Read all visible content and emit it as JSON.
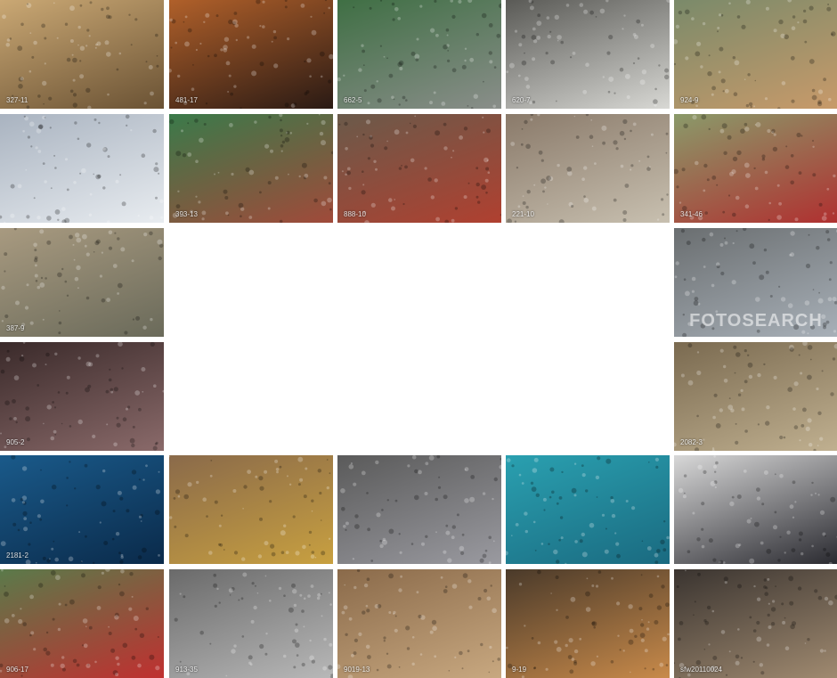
{
  "tiles": [
    {
      "row": 0,
      "col": 0,
      "caption": "327-11",
      "scene": "train station crowd",
      "colors": [
        "#caa874",
        "#6a5234"
      ]
    },
    {
      "row": 0,
      "col": 1,
      "caption": "481-17",
      "scene": "night city traffic",
      "colors": [
        "#b0602a",
        "#2a1a14"
      ]
    },
    {
      "row": 0,
      "col": 2,
      "caption": "662-5",
      "scene": "plaza fountain traffic",
      "colors": [
        "#3f6f44",
        "#8a8e8a"
      ]
    },
    {
      "row": 0,
      "col": 3,
      "caption": "620-7",
      "scene": "crosswalk intersection",
      "colors": [
        "#5a5a56",
        "#d8d8d4"
      ]
    },
    {
      "row": 0,
      "col": 4,
      "caption": "924-9",
      "scene": "highway interchange",
      "colors": [
        "#7a8a6a",
        "#c89a6a"
      ]
    },
    {
      "row": 1,
      "col": 0,
      "caption": "",
      "scene": "white-robed gathering",
      "colors": [
        "#a9b3c0",
        "#e8ecf0"
      ]
    },
    {
      "row": 1,
      "col": 1,
      "caption": "393-13",
      "scene": "stadium performance",
      "colors": [
        "#3a7a4a",
        "#a04a3a"
      ]
    },
    {
      "row": 1,
      "col": 2,
      "caption": "888-10",
      "scene": "crowd running",
      "colors": [
        "#6a5a4a",
        "#b04030"
      ]
    },
    {
      "row": 1,
      "col": 3,
      "caption": "221-10",
      "scene": "hall booths crowd",
      "colors": [
        "#8a7a6a",
        "#c8c0b0"
      ]
    },
    {
      "row": 1,
      "col": 4,
      "caption": "341-46",
      "scene": "street with buses",
      "colors": [
        "#8a9a6a",
        "#b03030"
      ]
    },
    {
      "row": 2,
      "col": 0,
      "caption": "387-9",
      "scene": "aerial intersection",
      "colors": [
        "#a89a80",
        "#6a6a5a"
      ]
    },
    {
      "row": 2,
      "col": 4,
      "caption": "",
      "watermark": "FOTOSEARCH",
      "scene": "highway",
      "colors": [
        "#6a6e70",
        "#a8b0b8"
      ]
    },
    {
      "row": 3,
      "col": 0,
      "caption": "905-2",
      "scene": "dense crowd",
      "colors": [
        "#3a2a2a",
        "#8a6a6a"
      ]
    },
    {
      "row": 3,
      "col": 4,
      "caption": "2082-3",
      "scene": "city street with bus",
      "colors": [
        "#7a6a50",
        "#c0b090"
      ]
    },
    {
      "row": 4,
      "col": 0,
      "caption": "2181-2",
      "scene": "fish school underwater",
      "colors": [
        "#1a5a8a",
        "#0a2a4a"
      ]
    },
    {
      "row": 4,
      "col": 1,
      "caption": "",
      "scene": "festival ship procession",
      "colors": [
        "#8a6a4a",
        "#c8a040"
      ]
    },
    {
      "row": 4,
      "col": 2,
      "caption": "",
      "scene": "city street parade",
      "colors": [
        "#5a5a5a",
        "#9a9aa0"
      ]
    },
    {
      "row": 4,
      "col": 3,
      "caption": "",
      "scene": "fish underwater",
      "colors": [
        "#2aa0b0",
        "#1a6a80"
      ]
    },
    {
      "row": 4,
      "col": 4,
      "caption": "",
      "scene": "business crowd walking",
      "colors": [
        "#d8d8d8",
        "#2a2a30"
      ]
    },
    {
      "row": 5,
      "col": 0,
      "caption": "906-17",
      "scene": "market pavilion",
      "colors": [
        "#5a7a4a",
        "#c03030"
      ]
    },
    {
      "row": 5,
      "col": 1,
      "caption": "913-35",
      "scene": "escalators crowd",
      "colors": [
        "#6a6a6a",
        "#b8b8b8"
      ]
    },
    {
      "row": 5,
      "col": 2,
      "caption": "9019-13",
      "scene": "station hall",
      "colors": [
        "#8a6a4a",
        "#c8a880"
      ]
    },
    {
      "row": 5,
      "col": 3,
      "caption": "9-19",
      "scene": "crowd at night",
      "colors": [
        "#4a3a2a",
        "#c88a4a"
      ]
    },
    {
      "row": 5,
      "col": 4,
      "caption": "sfw20110024",
      "scene": "grand station hall",
      "colors": [
        "#3a3430",
        "#a08a70"
      ]
    }
  ]
}
